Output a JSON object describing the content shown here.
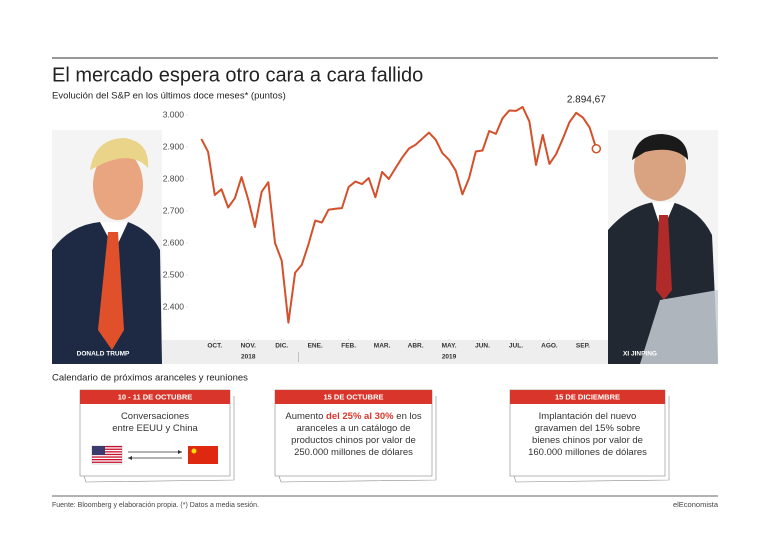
{
  "chart_data": {
    "type": "line",
    "title": "El mercado espera otro cara a cara fallido",
    "subtitle": "Evolución del S&P en los últimos doce meses* (puntos)",
    "x": [
      0,
      1,
      2,
      3,
      4,
      5,
      6,
      7,
      8,
      9,
      10,
      11,
      12,
      13,
      14,
      15,
      16,
      17,
      18,
      19,
      20,
      21,
      22,
      23,
      24,
      25,
      26,
      27,
      28,
      29,
      30,
      31,
      32,
      33,
      34,
      35,
      36,
      37,
      38,
      39,
      40,
      41,
      42,
      43,
      44,
      45,
      46,
      47,
      48,
      49,
      50,
      51,
      52,
      53,
      54,
      55,
      56,
      57,
      58,
      59
    ],
    "values": [
      2925,
      2885,
      2750,
      2768,
      2711,
      2740,
      2806,
      2736,
      2650,
      2760,
      2790,
      2600,
      2545,
      2351,
      2507,
      2532,
      2596,
      2670,
      2664,
      2704,
      2707,
      2709,
      2775,
      2792,
      2784,
      2803,
      2743,
      2822,
      2800,
      2834,
      2867,
      2895,
      2907,
      2926,
      2945,
      2923,
      2881,
      2860,
      2826,
      2752,
      2803,
      2886,
      2889,
      2950,
      2941,
      2990,
      3014,
      3013,
      3025,
      2980,
      2844,
      2938,
      2847,
      2878,
      2926,
      2978,
      3007,
      2992,
      2961,
      2894.67
    ],
    "color": "#d4502a",
    "last_label": "2.894,67",
    "xlim": [
      -2,
      60
    ],
    "ylim": [
      2300,
      3050
    ],
    "yticks": [
      {
        "value": 2400,
        "label": "2.400"
      },
      {
        "value": 2500,
        "label": "2.500"
      },
      {
        "value": 2600,
        "label": "2.600"
      },
      {
        "value": 2700,
        "label": "2.700"
      },
      {
        "value": 2800,
        "label": "2.800"
      },
      {
        "value": 2900,
        "label": "2.900"
      },
      {
        "value": 3000,
        "label": "3.000"
      }
    ],
    "xticks": [
      {
        "value": 2,
        "label": "OCT."
      },
      {
        "value": 7,
        "label": "NOV."
      },
      {
        "value": 12,
        "label": "DIC."
      },
      {
        "value": 17,
        "label": "ENE."
      },
      {
        "value": 22,
        "label": "FEB."
      },
      {
        "value": 27,
        "label": "MAR."
      },
      {
        "value": 32,
        "label": "ABR."
      },
      {
        "value": 37,
        "label": "MAY."
      },
      {
        "value": 42,
        "label": "JUN."
      },
      {
        "value": 47,
        "label": "JUL."
      },
      {
        "value": 52,
        "label": "AGO."
      },
      {
        "value": 57,
        "label": "SEP."
      }
    ],
    "xgroups": [
      {
        "label": "2018",
        "x": 7
      },
      {
        "label": "2019",
        "x": 37
      }
    ],
    "grid": false,
    "left_photo_label": "DONALD TRUMP",
    "right_photo_label": "XI JINPING"
  },
  "calendar": {
    "title": "Calendario de próximos aranceles y reuniones",
    "cards": [
      {
        "date": "10 - 11 DE OCTUBRE",
        "lines": [
          [
            {
              "text": "Conversaciones"
            }
          ],
          [
            {
              "text": "entre EEUU y China"
            }
          ]
        ]
      },
      {
        "date": "15 DE OCTUBRE",
        "lines": [
          [
            {
              "text": "Aumento "
            },
            {
              "text": "del 25% al 30%",
              "bold": true
            },
            {
              "text": " en los"
            }
          ],
          [
            {
              "text": "aranceles a un catálogo de"
            }
          ],
          [
            {
              "text": "productos chinos por valor de"
            }
          ],
          [
            {
              "text": "250.000 millones de dólares"
            }
          ]
        ]
      },
      {
        "date": "15 DE DICIEMBRE",
        "lines": [
          [
            {
              "text": "Implantación del nuevo"
            }
          ],
          [
            {
              "text": "gravamen del 15% sobre"
            }
          ],
          [
            {
              "text": "bienes chinos por valor de"
            }
          ],
          [
            {
              "text": "160.000 millones de dólares"
            }
          ]
        ]
      }
    ]
  },
  "footer": {
    "source": "Fuente: Bloomberg y elaboración propia. (*) Datos a media sesión.",
    "brand": "elEconomista"
  }
}
